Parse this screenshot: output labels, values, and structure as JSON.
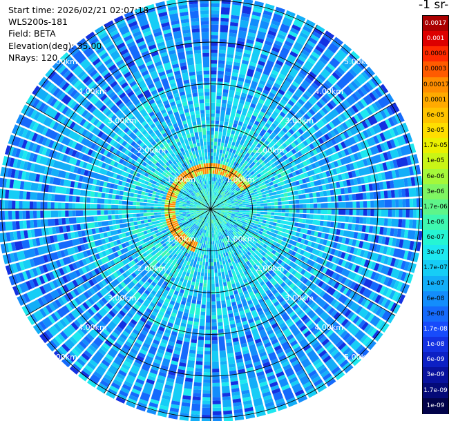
{
  "info": {
    "start_time": "Start time: 2026/02/21 02:07:18",
    "instrument": "WLS200s-181",
    "field": "Field: BETA",
    "elevation": "Elevation(deg): 35.00",
    "nrays": "NRays: 120"
  },
  "colorbar": {
    "title": "-1 sr-",
    "labels": [
      "0.0017",
      "0.001",
      "0.0006",
      "0.0003",
      "0.00017",
      "0.0001",
      "6e-05",
      "3e-05",
      "1.7e-05",
      "1e-05",
      "6e-06",
      "3e-06",
      "1.7e-06",
      "1e-06",
      "6e-07",
      "3e-07",
      "1.7e-07",
      "1e-07",
      "6e-08",
      "3e-08",
      "1.7e-08",
      "1e-08",
      "6e-09",
      "3e-09",
      "1.7e-09",
      "1e-09"
    ],
    "colors": [
      "#ab0000",
      "#dd0000",
      "#ff2a00",
      "#ff5b00",
      "#ff8d00",
      "#ffaa00",
      "#ffc300",
      "#ffde00",
      "#eaf000",
      "#c9f516",
      "#a5f83a",
      "#7ff562",
      "#5ef58a",
      "#3ef7b0",
      "#25f5d4",
      "#1de8f0",
      "#16cdf6",
      "#13aef8",
      "#138dfc",
      "#156afc",
      "#174bfb",
      "#1331e2",
      "#0c20c4",
      "#08129e",
      "#040a78",
      "#02034a"
    ],
    "text_colors": [
      "#ffffff",
      "#ffffff",
      "#000000",
      "#000000",
      "#000000",
      "#000000",
      "#000000",
      "#000000",
      "#000000",
      "#000000",
      "#000000",
      "#000000",
      "#000000",
      "#000000",
      "#000000",
      "#000000",
      "#000000",
      "#000000",
      "#000000",
      "#000000",
      "#ffffff",
      "#ffffff",
      "#ffffff",
      "#ffffff",
      "#ffffff",
      "#ffffff"
    ]
  },
  "range_labels": [
    "1.00km",
    "2.00km",
    "3.00km",
    "4.00km",
    "5.00km"
  ],
  "ppi": {
    "nrays": 120,
    "range_rings_km": [
      1,
      2,
      3,
      4,
      5
    ],
    "max_range_km": 5.1,
    "spoke_step_deg": 30,
    "aerosol_ring_range_km": [
      0.5,
      0.75
    ],
    "aerosol_ring_color": "#ff8d00",
    "background_colors": [
      "#1331e2",
      "#156afc",
      "#138dfc",
      "#13aef8",
      "#16cdf6",
      "#1de8f0",
      "#25f5d4",
      "#3ef7b0",
      "#5ef58a",
      "#7ff562",
      "#a5f83a"
    ]
  }
}
